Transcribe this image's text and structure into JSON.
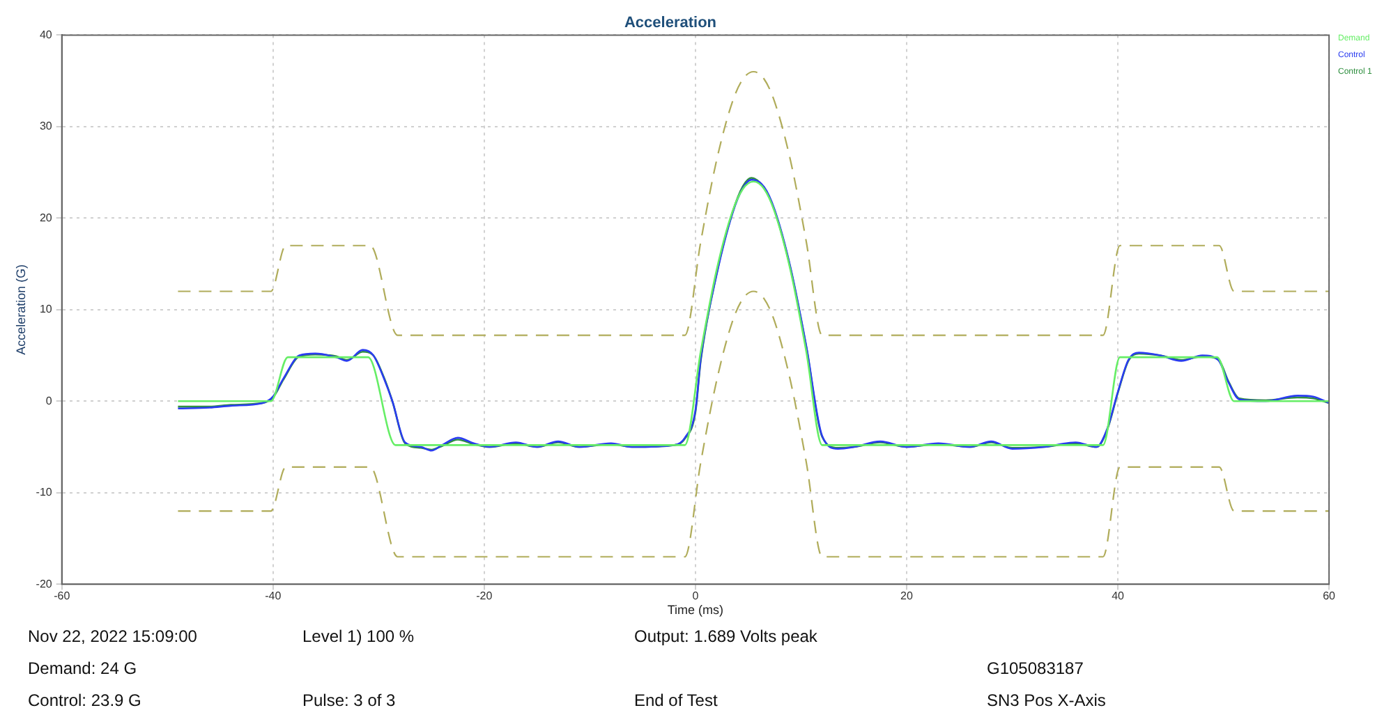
{
  "chart_data": {
    "type": "line",
    "title": "Acceleration",
    "xlabel": "Time (ms)",
    "ylabel": "Acceleration (G)",
    "xlim": [
      -60,
      60
    ],
    "xticks": [
      -60,
      -40,
      -20,
      0,
      20,
      40,
      60
    ],
    "ylim": [
      -20,
      40
    ],
    "yticks": [
      -20,
      -10,
      0,
      10,
      20,
      30,
      40
    ],
    "grid": true,
    "legend": "top right",
    "marker": "none",
    "series": [
      {
        "name": "Demand",
        "color": "#66ee66",
        "line_style": "solid",
        "x": [
          -49,
          -40.2,
          -38.6,
          -31,
          -28.4,
          -1,
          0.5,
          2,
          3.5,
          4.5,
          5.5,
          6.5,
          7.5,
          9,
          10.5,
          12,
          38.6,
          40.2,
          49.4,
          51,
          60
        ],
        "values": [
          0,
          0,
          4.8,
          4.8,
          -4.8,
          -4.8,
          5.4,
          14.3,
          20.7,
          23.2,
          24,
          23.2,
          20.7,
          14.3,
          5.4,
          -4.8,
          -4.8,
          4.8,
          4.8,
          0,
          0
        ]
      },
      {
        "name": "Control",
        "color": "#2a3cf0",
        "line_style": "solid",
        "x": [
          -49,
          -46,
          -44,
          -41,
          -40,
          -39,
          -37.5,
          -36,
          -34,
          -33,
          -31.5,
          -30.5,
          -29.5,
          -28.7,
          -27.5,
          -26,
          -25,
          -24,
          -22.5,
          -21,
          -19.5,
          -17,
          -15,
          -13,
          -11,
          -8,
          -6,
          -2,
          -1,
          0,
          0.5,
          2,
          3.5,
          4.5,
          5.3,
          6.5,
          7.5,
          9,
          10.5,
          12,
          13.5,
          15,
          17.5,
          20,
          23,
          26,
          28,
          30,
          33,
          36,
          38,
          39,
          40,
          41,
          42,
          44,
          46,
          48,
          49.5,
          50.5,
          51.5,
          54,
          57,
          58.5,
          60
        ],
        "values": [
          -0.8,
          -0.7,
          -0.5,
          -0.2,
          0.5,
          2.5,
          5,
          5.2,
          4.8,
          4.4,
          5.6,
          5,
          2.5,
          0,
          -4.5,
          -5,
          -5.4,
          -4.8,
          -4,
          -4.6,
          -5,
          -4.5,
          -5,
          -4.4,
          -5,
          -4.6,
          -5,
          -4.8,
          -4,
          -1,
          4.6,
          13.8,
          20.5,
          23.3,
          24.2,
          23.4,
          20.9,
          14.6,
          6,
          -3.8,
          -5.2,
          -5,
          -4.4,
          -5,
          -4.6,
          -5,
          -4.4,
          -5.2,
          -5,
          -4.5,
          -5,
          -3,
          1,
          4.5,
          5.3,
          5,
          4.4,
          5,
          4.5,
          2,
          0.2,
          0,
          0.6,
          0.5,
          -0.2
        ]
      },
      {
        "name": "Control 1",
        "color": "#2f8f3f",
        "line_style": "solid",
        "x": [
          -49,
          -46,
          -44,
          -41,
          -40,
          -39,
          -37.5,
          -36,
          -34,
          -33,
          -31.5,
          -30.5,
          -29.5,
          -28.7,
          -27.5,
          -26,
          -25,
          -24,
          -22.5,
          -21,
          -19.5,
          -17,
          -15,
          -13,
          -11,
          -8,
          -6,
          -2,
          -1,
          0,
          0.5,
          2,
          3.5,
          4.5,
          5.3,
          6.5,
          7.5,
          9,
          10.5,
          12,
          13.5,
          15,
          17.5,
          20,
          23,
          26,
          28,
          30,
          33,
          36,
          38,
          39,
          40,
          41,
          42,
          44,
          46,
          48,
          49.5,
          50.5,
          51.5,
          54,
          57,
          58.5,
          60
        ],
        "values": [
          -0.6,
          -0.6,
          -0.4,
          -0.2,
          0.4,
          2.4,
          4.9,
          5.1,
          4.9,
          4.5,
          5.4,
          5,
          2.6,
          0,
          -4.6,
          -5.1,
          -5.3,
          -4.9,
          -4.2,
          -4.7,
          -5,
          -4.6,
          -5,
          -4.5,
          -5,
          -4.7,
          -5,
          -4.8,
          -4.1,
          -1.2,
          4.4,
          13.9,
          20.6,
          23.5,
          24.4,
          23.3,
          20.8,
          14.5,
          5.9,
          -3.9,
          -5.1,
          -5,
          -4.5,
          -5,
          -4.7,
          -5,
          -4.5,
          -5.1,
          -5,
          -4.6,
          -5,
          -3.1,
          0.9,
          4.4,
          5.2,
          5,
          4.5,
          4.9,
          4.6,
          2.1,
          0.3,
          0.1,
          0.4,
          0.3,
          -0.2
        ]
      },
      {
        "color": "#b0ac5a",
        "line_style": "dashed",
        "x": [
          -49,
          -40.2,
          -38.8,
          -30.8,
          -28.2,
          -1,
          0.5,
          2,
          3.5,
          4.5,
          5.5,
          6.5,
          7.5,
          9,
          10.5,
          12,
          38.6,
          40.2,
          49.6,
          51,
          60
        ],
        "values": [
          12,
          12,
          17,
          17,
          7.2,
          7.2,
          17.4,
          26.3,
          32.7,
          35.2,
          36,
          35.2,
          32.7,
          26.3,
          17.4,
          7.2,
          7.2,
          17,
          17,
          12,
          12
        ]
      },
      {
        "color": "#b0ac5a",
        "line_style": "dashed",
        "x": [
          -49,
          -40.2,
          -38.8,
          -30.8,
          -28.2,
          -1,
          0.5,
          2,
          3.5,
          4.5,
          5.5,
          6.5,
          7.5,
          9,
          10.5,
          12,
          38.6,
          40.2,
          49.6,
          51,
          60
        ],
        "values": [
          -12,
          -12,
          -7.2,
          -7.2,
          -17,
          -17,
          -6.7,
          2.2,
          8.7,
          11.2,
          12,
          11.2,
          8.7,
          2.2,
          -6.7,
          -17,
          -17,
          -7.2,
          -7.2,
          -12,
          -12
        ]
      }
    ],
    "annotations": [
      "Nov 22, 2022 15:09:00",
      "Level 1) 100 %",
      "Output: 1.689 Volts peak",
      "Demand: 24 G",
      "G105083187",
      "Control: 23.9 G",
      "Pulse: 3 of 3",
      "End of Test",
      "SN3 Pos X-Axis"
    ]
  }
}
